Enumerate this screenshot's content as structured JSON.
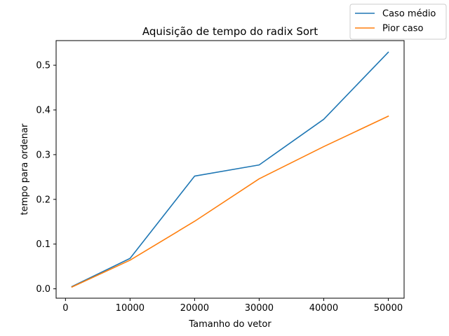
{
  "chart_data": {
    "type": "line",
    "title": "Aquisição de tempo do radix Sort",
    "xlabel": "Tamanho do vetor",
    "ylabel": "tempo para ordenar",
    "x": [
      1000,
      10000,
      20000,
      30000,
      40000,
      50000
    ],
    "xticks": [
      0,
      10000,
      20000,
      30000,
      40000,
      50000
    ],
    "yticks": [
      0.0,
      0.1,
      0.2,
      0.3,
      0.4,
      0.5
    ],
    "ytick_labels": [
      "0.0",
      "0.1",
      "0.2",
      "0.3",
      "0.4",
      "0.5"
    ],
    "xlim": [
      -1450,
      52450
    ],
    "ylim": [
      -0.021,
      0.555
    ],
    "grid": false,
    "legend_position": "top-right, outside axes",
    "series": [
      {
        "name": "Caso médio",
        "color": "#1f77b4",
        "values": [
          0.005,
          0.068,
          0.252,
          0.277,
          0.379,
          0.529
        ]
      },
      {
        "name": "Pior caso",
        "color": "#ff7f0e",
        "values": [
          0.004,
          0.064,
          0.151,
          0.246,
          0.318,
          0.386
        ]
      }
    ]
  }
}
